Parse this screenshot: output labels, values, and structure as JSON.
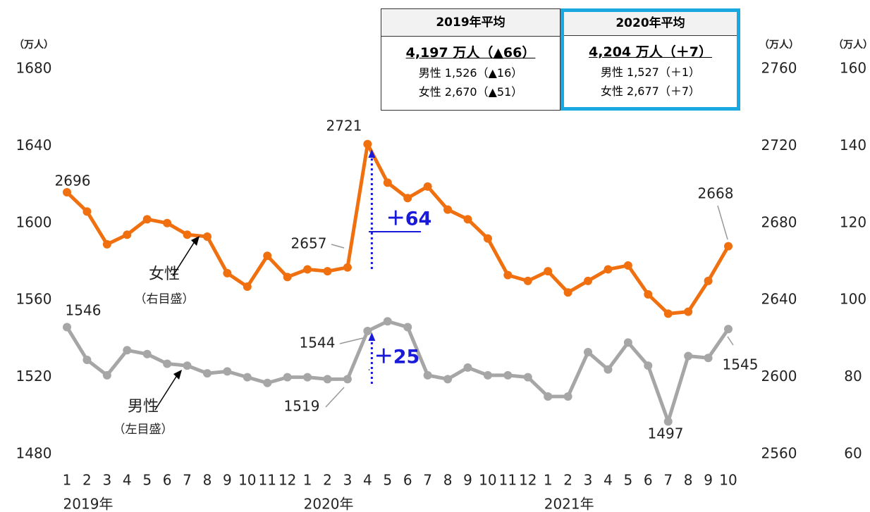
{
  "chart_data": {
    "type": "line",
    "categories": [
      "1",
      "2",
      "3",
      "4",
      "5",
      "6",
      "7",
      "8",
      "9",
      "10",
      "11",
      "12",
      "1",
      "2",
      "3",
      "4",
      "5",
      "6",
      "7",
      "8",
      "9",
      "10",
      "11",
      "12",
      "1",
      "2",
      "3",
      "4",
      "5",
      "6",
      "7",
      "8",
      "9",
      "10"
    ],
    "x_group_labels": [
      "2019年",
      "2020年",
      "2021年"
    ],
    "series": [
      {
        "name": "女性",
        "axis": "y2",
        "color": "#f07010",
        "values": [
          2696,
          2686,
          2669,
          2674,
          2682,
          2680,
          2674,
          2673,
          2654,
          2647,
          2663,
          2652,
          2656,
          2655,
          2657,
          2721,
          2701,
          2693,
          2699,
          2687,
          2682,
          2672,
          2653,
          2650,
          2655,
          2644,
          2650,
          2656,
          2658,
          2643,
          2633,
          2634,
          2650,
          2668
        ],
        "value_labels": [
          "2696",
          null,
          null,
          null,
          null,
          null,
          null,
          null,
          null,
          null,
          null,
          null,
          null,
          null,
          "2657",
          "2721",
          null,
          null,
          null,
          null,
          null,
          null,
          null,
          null,
          null,
          null,
          null,
          null,
          null,
          null,
          null,
          null,
          null,
          "2668"
        ]
      },
      {
        "name": "男性",
        "axis": "y",
        "color": "#a6a6a6",
        "values": [
          1546,
          1529,
          1521,
          1534,
          1532,
          1527,
          1526,
          1522,
          1523,
          1520,
          1517,
          1520,
          1520,
          1519,
          1519,
          1544,
          1549,
          1546,
          1521,
          1519,
          1525,
          1521,
          1521,
          1520,
          1510,
          1510,
          1533,
          1524,
          1538,
          1526,
          1497,
          1531,
          1530,
          1545
        ],
        "value_labels": [
          "1546",
          null,
          null,
          null,
          null,
          null,
          null,
          null,
          null,
          null,
          null,
          null,
          null,
          null,
          "1519",
          "1544",
          null,
          null,
          null,
          null,
          null,
          null,
          null,
          null,
          null,
          null,
          null,
          null,
          null,
          null,
          "1497",
          null,
          null,
          "1545"
        ]
      }
    ],
    "series_notes": [
      "（右目盛）",
      "（左目盛）"
    ],
    "ylabel": "（万人）",
    "y2label": "（万人）",
    "y3label": "（万人）",
    "ylim": [
      1480,
      1680
    ],
    "yticks": [
      1480,
      1520,
      1560,
      1600,
      1640,
      1680
    ],
    "y2lim": [
      2560,
      2760
    ],
    "y2ticks": [
      2560,
      2600,
      2640,
      2680,
      2720,
      2760
    ],
    "y3lim": [
      60,
      160
    ],
    "y3ticks": [
      60,
      80,
      100,
      120,
      140,
      160
    ],
    "annotations": [
      "＋64",
      "＋25"
    ],
    "summary_boxes": [
      {
        "title": "2019年平均",
        "total": "4,197 万人（▲66）",
        "male": "男性 1,526（▲16）",
        "female": "女性 2,670（▲51）"
      },
      {
        "title": "2020年平均",
        "total": "4,204 万人（＋7）",
        "male": "男性 1,527（＋1）",
        "female": "女性 2,677（＋7）"
      }
    ]
  }
}
